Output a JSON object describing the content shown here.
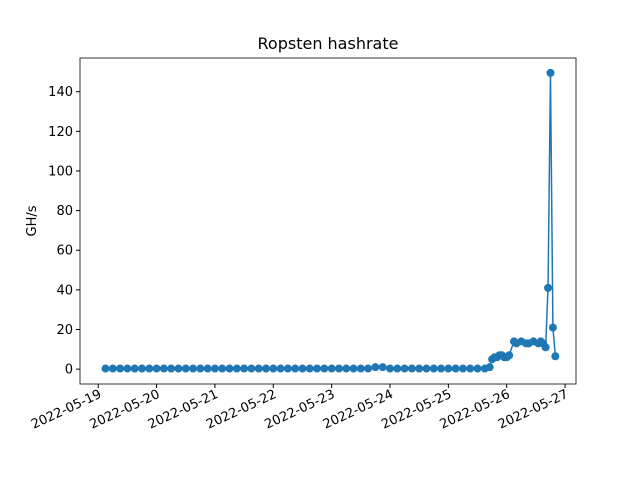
{
  "chart_data": {
    "type": "line",
    "title": "Ropsten hashrate",
    "y_label": "GH/s",
    "color": "#1f77b4",
    "x": [
      "2022-05-19T03:00",
      "2022-05-19T06:00",
      "2022-05-19T09:00",
      "2022-05-19T12:00",
      "2022-05-19T15:00",
      "2022-05-19T18:00",
      "2022-05-19T21:00",
      "2022-05-20T00:00",
      "2022-05-20T03:00",
      "2022-05-20T06:00",
      "2022-05-20T09:00",
      "2022-05-20T12:00",
      "2022-05-20T15:00",
      "2022-05-20T18:00",
      "2022-05-20T21:00",
      "2022-05-21T00:00",
      "2022-05-21T03:00",
      "2022-05-21T06:00",
      "2022-05-21T09:00",
      "2022-05-21T12:00",
      "2022-05-21T15:00",
      "2022-05-21T18:00",
      "2022-05-21T21:00",
      "2022-05-22T00:00",
      "2022-05-22T03:00",
      "2022-05-22T06:00",
      "2022-05-22T09:00",
      "2022-05-22T12:00",
      "2022-05-22T15:00",
      "2022-05-22T18:00",
      "2022-05-22T21:00",
      "2022-05-23T00:00",
      "2022-05-23T03:00",
      "2022-05-23T06:00",
      "2022-05-23T09:00",
      "2022-05-23T12:00",
      "2022-05-23T15:00",
      "2022-05-23T18:00",
      "2022-05-23T21:00",
      "2022-05-24T00:00",
      "2022-05-24T03:00",
      "2022-05-24T06:00",
      "2022-05-24T09:00",
      "2022-05-24T12:00",
      "2022-05-24T15:00",
      "2022-05-24T18:00",
      "2022-05-24T21:00",
      "2022-05-25T00:00",
      "2022-05-25T03:00",
      "2022-05-25T06:00",
      "2022-05-25T09:00",
      "2022-05-25T12:00",
      "2022-05-25T15:00",
      "2022-05-25T17:00",
      "2022-05-25T18:00",
      "2022-05-25T19:00",
      "2022-05-25T20:00",
      "2022-05-25T21:00",
      "2022-05-25T22:00",
      "2022-05-25T23:00",
      "2022-05-26T00:00",
      "2022-05-26T01:00",
      "2022-05-26T03:00",
      "2022-05-26T04:00",
      "2022-05-26T06:00",
      "2022-05-26T08:00",
      "2022-05-26T09:00",
      "2022-05-26T11:00",
      "2022-05-26T13:00",
      "2022-05-26T14:00",
      "2022-05-26T15:00",
      "2022-05-26T16:00",
      "2022-05-26T17:00",
      "2022-05-26T18:00",
      "2022-05-26T19:00",
      "2022-05-26T20:00"
    ],
    "values": [
      0.3,
      0.3,
      0.3,
      0.3,
      0.3,
      0.3,
      0.3,
      0.3,
      0.3,
      0.3,
      0.3,
      0.3,
      0.3,
      0.3,
      0.3,
      0.3,
      0.3,
      0.3,
      0.3,
      0.3,
      0.3,
      0.3,
      0.3,
      0.3,
      0.3,
      0.3,
      0.3,
      0.3,
      0.3,
      0.3,
      0.3,
      0.3,
      0.3,
      0.3,
      0.3,
      0.3,
      0.3,
      1,
      1,
      0.3,
      0.3,
      0.3,
      0.3,
      0.3,
      0.3,
      0.3,
      0.3,
      0.3,
      0.3,
      0.3,
      0.3,
      0.3,
      0.3,
      1,
      5,
      6,
      6,
      7,
      7,
      6,
      6,
      7,
      14,
      13,
      14,
      13,
      13,
      14,
      13,
      14,
      13,
      11,
      41,
      149.5,
      21,
      6.5
    ],
    "xlim": [
      "2022-05-18T16:30",
      "2022-05-27T04:30"
    ],
    "xticks": [
      "2022-05-19",
      "2022-05-20",
      "2022-05-21",
      "2022-05-22",
      "2022-05-23",
      "2022-05-24",
      "2022-05-25",
      "2022-05-26",
      "2022-05-27"
    ],
    "ylim": [
      -7.5,
      157
    ],
    "yticks": [
      0,
      20,
      40,
      60,
      80,
      100,
      120,
      140
    ]
  }
}
